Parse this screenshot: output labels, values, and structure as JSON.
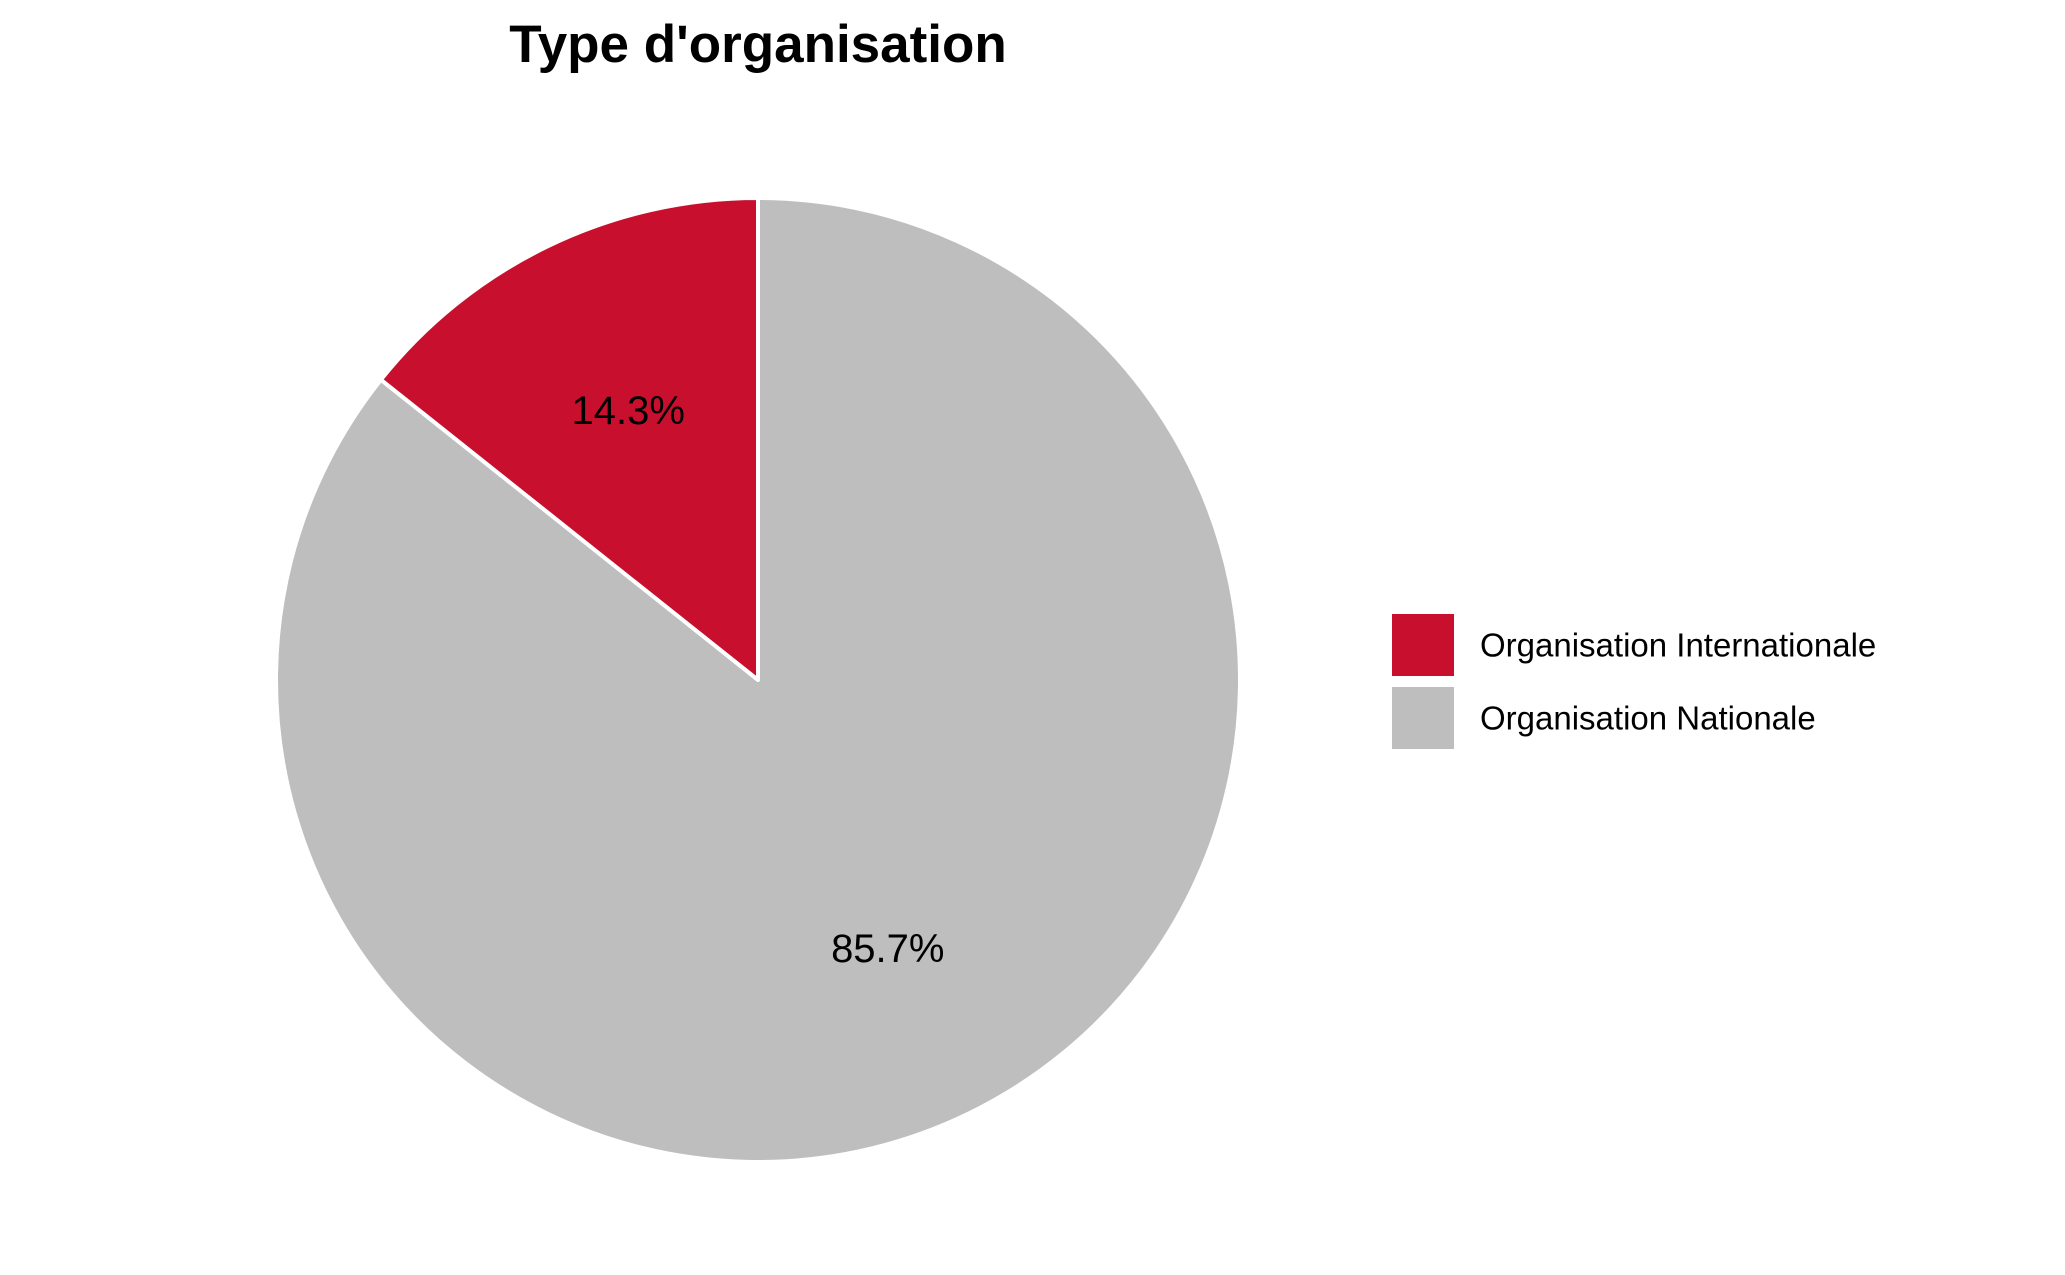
{
  "chart_data": {
    "type": "pie",
    "title": "Type d'organisation",
    "start": "top",
    "direction": "counterclockwise",
    "slices": [
      {
        "name": "Organisation Internationale",
        "value": 14.3,
        "label": "14.3%",
        "color": "#C8102E"
      },
      {
        "name": "Organisation Nationale",
        "value": 85.7,
        "label": "85.7%",
        "color": "#BEBEBE"
      }
    ],
    "legend": {
      "placement": "right",
      "entries": [
        "Organisation Internationale",
        "Organisation Nationale"
      ]
    },
    "slice_border_color": "#FFFFFF"
  }
}
